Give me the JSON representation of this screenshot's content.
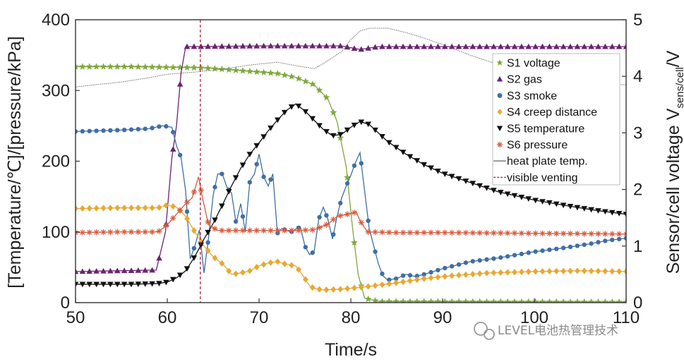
{
  "chart_data": {
    "type": "line",
    "xlabel": "Time/s",
    "ylabel_left": "[Temperature/℃]/[pressure/kPa]",
    "ylabel_right": "Sensor/cell voltage V",
    "ylabel_right_sub": "sens/cell",
    "ylabel_right_unit": "/V",
    "xlim": [
      50,
      110
    ],
    "ylim_left": [
      0,
      400
    ],
    "ylim_right": [
      0,
      5
    ],
    "xticks": [
      50,
      60,
      70,
      80,
      90,
      100,
      110
    ],
    "yticks_left": [
      0,
      100,
      200,
      300,
      400
    ],
    "yticks_right": [
      0,
      1,
      2,
      3,
      4,
      5
    ],
    "vline": {
      "name": "visible venting",
      "x": 63.6,
      "color": "#b0203a"
    },
    "series": [
      {
        "name": "S1 voltage",
        "axis": "right",
        "color": "#7da83c",
        "marker": "star",
        "points": [
          [
            50,
            4.17
          ],
          [
            56,
            4.17
          ],
          [
            60,
            4.16
          ],
          [
            64,
            4.15
          ],
          [
            68,
            4.1
          ],
          [
            72,
            4.05
          ],
          [
            74,
            3.98
          ],
          [
            76,
            3.85
          ],
          [
            77.5,
            3.6
          ],
          [
            78.5,
            3.2
          ],
          [
            79.5,
            2.4
          ],
          [
            80.2,
            1.3
          ],
          [
            80.8,
            0.5
          ],
          [
            81.5,
            0.08
          ],
          [
            83,
            0.02
          ],
          [
            110,
            0.01
          ]
        ]
      },
      {
        "name": "S2 gas",
        "axis": "left",
        "color": "#6b2272",
        "marker": "triangle-up",
        "points": [
          [
            50,
            44
          ],
          [
            58.8,
            46
          ],
          [
            59.8,
            100
          ],
          [
            60.5,
            205
          ],
          [
            61,
            250
          ],
          [
            61.5,
            325
          ],
          [
            62,
            362
          ],
          [
            70,
            363
          ],
          [
            79,
            363
          ],
          [
            81,
            358
          ],
          [
            83,
            362
          ],
          [
            110,
            362
          ]
        ]
      },
      {
        "name": "S3 smoke",
        "axis": "left",
        "color": "#3f6fa3",
        "marker": "circle",
        "points": [
          [
            50,
            242
          ],
          [
            55,
            244
          ],
          [
            58,
            246
          ],
          [
            59.5,
            250
          ],
          [
            60.5,
            248
          ],
          [
            61,
            222
          ],
          [
            61.5,
            205
          ],
          [
            62,
            158
          ],
          [
            62.5,
            62
          ],
          [
            63,
            80
          ],
          [
            63.5,
            103
          ],
          [
            64,
            42
          ],
          [
            64.5,
            92
          ],
          [
            65,
            152
          ],
          [
            65.5,
            182
          ],
          [
            66,
            182
          ],
          [
            66.5,
            163
          ],
          [
            67,
            155
          ],
          [
            67.5,
            112
          ],
          [
            68,
            140
          ],
          [
            68.5,
            100
          ],
          [
            69,
            172
          ],
          [
            69.5,
            182
          ],
          [
            70,
            210
          ],
          [
            70.5,
            178
          ],
          [
            71,
            165
          ],
          [
            71.5,
            182
          ],
          [
            72,
            98
          ],
          [
            72.5,
            105
          ],
          [
            73,
            102
          ],
          [
            73.5,
            100
          ],
          [
            74,
            104
          ],
          [
            74.5,
            107
          ],
          [
            75,
            80
          ],
          [
            75.5,
            68
          ],
          [
            76,
            72
          ],
          [
            76.5,
            118
          ],
          [
            77,
            135
          ],
          [
            77.5,
            118
          ],
          [
            78,
            90
          ],
          [
            78.5,
            122
          ],
          [
            79,
            148
          ],
          [
            79.5,
            165
          ],
          [
            80,
            180
          ],
          [
            80.5,
            198
          ],
          [
            81,
            212
          ],
          [
            81.5,
            158
          ],
          [
            82,
            105
          ],
          [
            82.5,
            80
          ],
          [
            83,
            55
          ],
          [
            83.5,
            38
          ],
          [
            84,
            32
          ],
          [
            85,
            34
          ],
          [
            86,
            40
          ],
          [
            87,
            37
          ],
          [
            88,
            40
          ],
          [
            90,
            48
          ],
          [
            93,
            58
          ],
          [
            96,
            63
          ],
          [
            100,
            72
          ],
          [
            103,
            77
          ],
          [
            106,
            83
          ],
          [
            108,
            88
          ],
          [
            110,
            91
          ]
        ]
      },
      {
        "name": "S4 creep distance",
        "axis": "left",
        "color": "#e8a832",
        "marker": "diamond",
        "points": [
          [
            50,
            133
          ],
          [
            55,
            134
          ],
          [
            59,
            134
          ],
          [
            60,
            138
          ],
          [
            61,
            135
          ],
          [
            62,
            122
          ],
          [
            63,
            100
          ],
          [
            64,
            80
          ],
          [
            65,
            65
          ],
          [
            66,
            55
          ],
          [
            66.5,
            48
          ],
          [
            67,
            40
          ],
          [
            68,
            42
          ],
          [
            69,
            45
          ],
          [
            70,
            52
          ],
          [
            71,
            56
          ],
          [
            72,
            58
          ],
          [
            73,
            54
          ],
          [
            74,
            52
          ],
          [
            74.8,
            38
          ],
          [
            75.5,
            24
          ],
          [
            76,
            20
          ],
          [
            77,
            18
          ],
          [
            79,
            19
          ],
          [
            82,
            23
          ],
          [
            85,
            28
          ],
          [
            88,
            34
          ],
          [
            91,
            38
          ],
          [
            95,
            42
          ],
          [
            100,
            44
          ],
          [
            105,
            45
          ],
          [
            110,
            44
          ]
        ]
      },
      {
        "name": "S5 temperature",
        "axis": "left",
        "color": "#111111",
        "marker": "triangle-down",
        "points": [
          [
            50,
            26
          ],
          [
            53,
            26
          ],
          [
            56,
            26
          ],
          [
            59,
            27
          ],
          [
            60,
            29
          ],
          [
            61,
            35
          ],
          [
            62,
            45
          ],
          [
            63,
            65
          ],
          [
            64,
            90
          ],
          [
            65,
            112
          ],
          [
            66,
            138
          ],
          [
            67,
            165
          ],
          [
            68,
            190
          ],
          [
            69,
            210
          ],
          [
            70,
            226
          ],
          [
            71,
            243
          ],
          [
            72,
            258
          ],
          [
            73,
            272
          ],
          [
            74,
            281
          ],
          [
            75,
            271
          ],
          [
            76,
            258
          ],
          [
            77,
            245
          ],
          [
            78,
            236
          ],
          [
            79,
            238
          ],
          [
            80,
            248
          ],
          [
            81,
            256
          ],
          [
            82,
            252
          ],
          [
            83,
            240
          ],
          [
            84,
            228
          ],
          [
            86,
            210
          ],
          [
            88,
            195
          ],
          [
            90,
            183
          ],
          [
            93,
            170
          ],
          [
            96,
            157
          ],
          [
            100,
            145
          ],
          [
            104,
            136
          ],
          [
            107,
            130
          ],
          [
            110,
            125
          ]
        ]
      },
      {
        "name": "S6 pressure",
        "axis": "left",
        "color": "#d85a3c",
        "marker": "asterisk",
        "points": [
          [
            50,
            99
          ],
          [
            55,
            100
          ],
          [
            59,
            100
          ],
          [
            60,
            110
          ],
          [
            61,
            125
          ],
          [
            62,
            140
          ],
          [
            62.7,
            148
          ],
          [
            63,
            160
          ],
          [
            63.4,
            178
          ],
          [
            63.8,
            150
          ],
          [
            64.5,
            110
          ],
          [
            65.5,
            102
          ],
          [
            70,
            102
          ],
          [
            74,
            102
          ],
          [
            76,
            103
          ],
          [
            77.5,
            111
          ],
          [
            78.5,
            122
          ],
          [
            80,
            126
          ],
          [
            80.6,
            128
          ],
          [
            81,
            116
          ],
          [
            81.8,
            100
          ],
          [
            85,
            99
          ],
          [
            90,
            99
          ],
          [
            100,
            98
          ],
          [
            110,
            97
          ]
        ]
      },
      {
        "name": "heat plate temp.",
        "axis": "left",
        "color": "#6f6f6f",
        "marker": "none",
        "style": "dotted",
        "points": [
          [
            50,
            305
          ],
          [
            55,
            312
          ],
          [
            58,
            318
          ],
          [
            60,
            323
          ],
          [
            63,
            326
          ],
          [
            66,
            330
          ],
          [
            69,
            336
          ],
          [
            72,
            340
          ],
          [
            74,
            335
          ],
          [
            76,
            331
          ],
          [
            77,
            338
          ],
          [
            79,
            355
          ],
          [
            80,
            372
          ],
          [
            81,
            384
          ],
          [
            82,
            388
          ],
          [
            84,
            388
          ],
          [
            86,
            382
          ],
          [
            88,
            374
          ],
          [
            90,
            365
          ],
          [
            93,
            350
          ],
          [
            96,
            337
          ],
          [
            99,
            327
          ],
          [
            102,
            320
          ],
          [
            105,
            313
          ],
          [
            108,
            309
          ],
          [
            110,
            308
          ]
        ]
      }
    ],
    "legend": {
      "placement": "top-right",
      "entries": [
        "S1 voltage",
        "S2 gas",
        "S3 smoke",
        "S4 creep distance",
        "S5 temperature",
        "S6 pressure",
        "heat plate temp.",
        "visible venting"
      ]
    }
  },
  "watermark": "LEVEL电池热管理技术"
}
